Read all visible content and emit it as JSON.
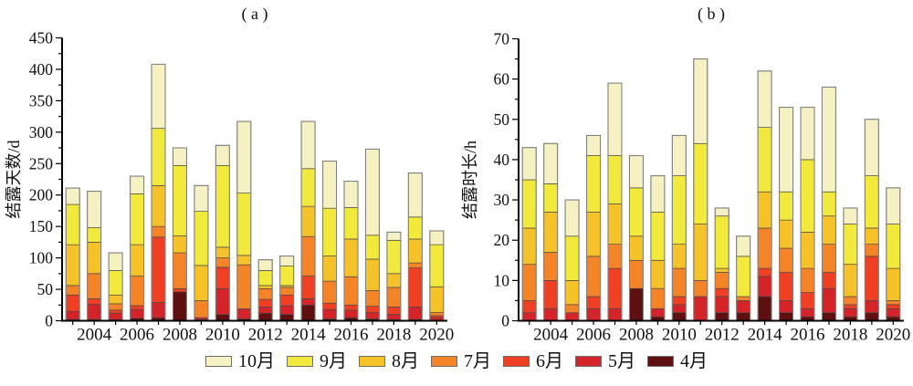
{
  "chart_data": [
    {
      "type": "bar",
      "variant": "stacked",
      "panel_label": "( a )",
      "ylabel": "结露天数/d",
      "xlabel": "",
      "ylim": [
        0,
        450
      ],
      "ytick_step": 50,
      "ytick_minor_step": 25,
      "ytick_labels": [
        "0",
        "50",
        "100",
        "150",
        "200",
        "250",
        "300",
        "350",
        "400",
        "450"
      ],
      "grid": false,
      "categories": [
        "2003",
        "2004",
        "2005",
        "2006",
        "2007",
        "2008",
        "2009",
        "2010",
        "2011",
        "2012",
        "2013",
        "2014",
        "2015",
        "2016",
        "2017",
        "2018",
        "2019",
        "2020"
      ],
      "xtick_labels": [
        "2004",
        "2006",
        "2008",
        "2010",
        "2012",
        "2014",
        "2016",
        "2018",
        "2020"
      ],
      "stack_order": "bottom-to-top",
      "series": [
        {
          "name": "4月",
          "color": "#5E1010",
          "values": [
            2,
            2,
            2,
            4,
            5,
            46,
            2,
            10,
            3,
            12,
            10,
            25,
            3,
            5,
            3,
            2,
            2,
            1
          ]
        },
        {
          "name": "5月",
          "color": "#D52429",
          "values": [
            13,
            24,
            10,
            14,
            24,
            0,
            3,
            41,
            16,
            10,
            14,
            10,
            15,
            12,
            10,
            8,
            20,
            4
          ]
        },
        {
          "name": "6月",
          "color": "#EF4023",
          "values": [
            26,
            9,
            5,
            6,
            104,
            5,
            0,
            34,
            0,
            12,
            17,
            36,
            10,
            8,
            10,
            12,
            62,
            3
          ]
        },
        {
          "name": "7月",
          "color": "#F58428",
          "values": [
            15,
            40,
            10,
            47,
            17,
            57,
            27,
            15,
            70,
            17,
            12,
            63,
            35,
            45,
            25,
            31,
            8,
            5
          ]
        },
        {
          "name": "8月",
          "color": "#F5C22A",
          "values": [
            65,
            50,
            14,
            50,
            65,
            27,
            56,
            17,
            15,
            5,
            3,
            48,
            40,
            60,
            50,
            22,
            38,
            41
          ]
        },
        {
          "name": "9月",
          "color": "#F2E93D",
          "values": [
            64,
            23,
            39,
            81,
            91,
            112,
            86,
            130,
            99,
            24,
            31,
            60,
            76,
            50,
            38,
            53,
            35,
            67
          ]
        },
        {
          "name": "10月",
          "color": "#F5F1C3",
          "values": [
            26,
            58,
            28,
            28,
            102,
            28,
            41,
            32,
            114,
            17,
            16,
            75,
            75,
            42,
            137,
            13,
            70,
            22
          ]
        }
      ],
      "totals": [
        211,
        206,
        108,
        230,
        408,
        275,
        215,
        279,
        317,
        97,
        103,
        317,
        254,
        222,
        273,
        141,
        235,
        143
      ]
    },
    {
      "type": "bar",
      "variant": "stacked",
      "panel_label": "( b )",
      "ylabel": "结露时长/h",
      "xlabel": "",
      "ylim": [
        0,
        70
      ],
      "ytick_step": 10,
      "ytick_minor_step": 5,
      "ytick_labels": [
        "0",
        "10",
        "20",
        "30",
        "40",
        "50",
        "60",
        "70"
      ],
      "grid": false,
      "categories": [
        "2003",
        "2004",
        "2005",
        "2006",
        "2007",
        "2008",
        "2009",
        "2010",
        "2011",
        "2012",
        "2013",
        "2014",
        "2015",
        "2016",
        "2017",
        "2018",
        "2019",
        "2020"
      ],
      "xtick_labels": [
        "2004",
        "2006",
        "2008",
        "2010",
        "2012",
        "2014",
        "2016",
        "2018",
        "2020"
      ],
      "stack_order": "bottom-to-top",
      "series": [
        {
          "name": "4月",
          "color": "#5E1010",
          "values": [
            0,
            0,
            0,
            0,
            0,
            8,
            1,
            2,
            0,
            2,
            2,
            6,
            2,
            1,
            2,
            1,
            2,
            1
          ]
        },
        {
          "name": "5月",
          "color": "#D52429",
          "values": [
            2,
            3,
            2,
            3,
            3,
            0,
            2,
            2,
            6,
            4,
            3,
            5,
            3,
            2,
            6,
            2,
            3,
            2
          ]
        },
        {
          "name": "6月",
          "color": "#EF4023",
          "values": [
            3,
            7,
            0,
            3,
            10,
            0,
            0,
            2,
            0,
            2,
            0,
            2,
            7,
            4,
            4,
            1,
            11,
            1
          ]
        },
        {
          "name": "7月",
          "color": "#F58428",
          "values": [
            9,
            7,
            2,
            10,
            6,
            7,
            5,
            7,
            4,
            4,
            1,
            10,
            6,
            6,
            7,
            2,
            3,
            1
          ]
        },
        {
          "name": "8月",
          "color": "#F5C22A",
          "values": [
            9,
            10,
            6,
            11,
            10,
            6,
            7,
            6,
            14,
            1,
            0,
            9,
            7,
            9,
            7,
            8,
            4,
            8
          ]
        },
        {
          "name": "9月",
          "color": "#F2E93D",
          "values": [
            12,
            7,
            11,
            14,
            12,
            12,
            12,
            17,
            20,
            13,
            10,
            16,
            7,
            18,
            6,
            10,
            13,
            11
          ]
        },
        {
          "name": "10月",
          "color": "#F5F1C3",
          "values": [
            8,
            10,
            9,
            5,
            18,
            8,
            9,
            10,
            21,
            2,
            5,
            14,
            21,
            13,
            26,
            4,
            14,
            9
          ]
        }
      ],
      "totals": [
        43,
        44,
        30,
        46,
        59,
        41,
        36,
        46,
        65,
        28,
        21,
        62,
        53,
        53,
        58,
        28,
        50,
        33
      ]
    }
  ],
  "legend": {
    "items": [
      {
        "label": "10月",
        "color": "#F5F1C3"
      },
      {
        "label": "9月",
        "color": "#F2E93D"
      },
      {
        "label": "8月",
        "color": "#F5C22A"
      },
      {
        "label": "7月",
        "color": "#F58428"
      },
      {
        "label": "6月",
        "color": "#EF4023"
      },
      {
        "label": "5月",
        "color": "#D52429"
      },
      {
        "label": "4月",
        "color": "#5E1010"
      }
    ]
  }
}
